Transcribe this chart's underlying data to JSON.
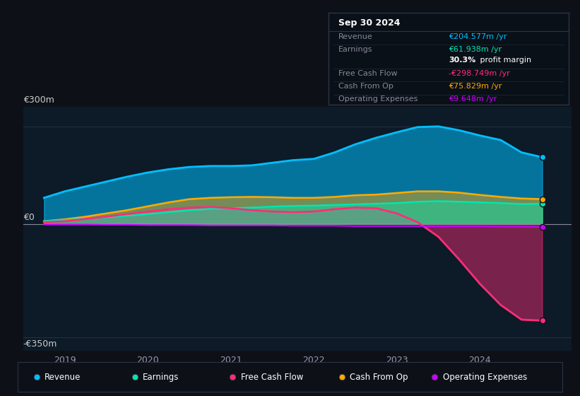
{
  "bg_color": "#0d1117",
  "plot_bg_color": "#0d1a27",
  "ylabel_300": "€300m",
  "ylabel_0": "€0",
  "ylabel_neg350": "-€350m",
  "x_ticks": [
    2019,
    2020,
    2021,
    2022,
    2023,
    2024
  ],
  "x_min": 2018.5,
  "x_max": 2025.1,
  "y_min": -390,
  "y_max": 360,
  "revenue_color": "#00bfff",
  "earnings_color": "#00e5b0",
  "fcf_color": "#ff2d78",
  "cashfromop_color": "#ffaa00",
  "opex_color": "#cc00ff",
  "info_box": {
    "title": "Sep 30 2024",
    "rows": [
      {
        "label": "Revenue",
        "value": "€204.577m /yr",
        "value_color": "#00bfff"
      },
      {
        "label": "Earnings",
        "value": "€61.938m /yr",
        "value_color": "#00e5b0"
      },
      {
        "label": "",
        "value": "30.3% profit margin",
        "value_color": "#ffffff"
      },
      {
        "label": "Free Cash Flow",
        "value": "-€298.749m /yr",
        "value_color": "#ff2d78"
      },
      {
        "label": "Cash From Op",
        "value": "€75.829m /yr",
        "value_color": "#ffaa00"
      },
      {
        "label": "Operating Expenses",
        "value": "€9.648m /yr",
        "value_color": "#cc00ff"
      }
    ]
  },
  "legend": [
    {
      "label": "Revenue",
      "color": "#00bfff"
    },
    {
      "label": "Earnings",
      "color": "#00e5b0"
    },
    {
      "label": "Free Cash Flow",
      "color": "#ff2d78"
    },
    {
      "label": "Cash From Op",
      "color": "#ffaa00"
    },
    {
      "label": "Operating Expenses",
      "color": "#cc00ff"
    }
  ],
  "x": [
    2018.75,
    2019.0,
    2019.25,
    2019.5,
    2019.75,
    2020.0,
    2020.25,
    2020.5,
    2020.75,
    2021.0,
    2021.25,
    2021.5,
    2021.75,
    2022.0,
    2022.25,
    2022.5,
    2022.75,
    2023.0,
    2023.25,
    2023.5,
    2023.75,
    2024.0,
    2024.25,
    2024.5,
    2024.75
  ],
  "revenue": [
    80,
    100,
    115,
    130,
    145,
    158,
    168,
    175,
    178,
    178,
    180,
    188,
    196,
    200,
    220,
    245,
    265,
    282,
    298,
    300,
    288,
    272,
    258,
    220,
    205
  ],
  "earnings": [
    8,
    12,
    16,
    20,
    25,
    30,
    36,
    42,
    46,
    48,
    50,
    53,
    55,
    56,
    58,
    60,
    62,
    64,
    68,
    70,
    68,
    66,
    64,
    61,
    62
  ],
  "fcf": [
    5,
    8,
    15,
    22,
    30,
    38,
    45,
    50,
    52,
    48,
    42,
    38,
    36,
    38,
    45,
    50,
    48,
    32,
    5,
    -40,
    -110,
    -185,
    -250,
    -295,
    -298
  ],
  "cashfromop": [
    8,
    14,
    22,
    32,
    42,
    54,
    66,
    76,
    80,
    82,
    83,
    82,
    80,
    80,
    83,
    88,
    90,
    95,
    100,
    100,
    96,
    89,
    83,
    78,
    76
  ],
  "opex": [
    -2,
    -2,
    -2,
    -3,
    -3,
    -4,
    -4,
    -4,
    -5,
    -5,
    -5,
    -5,
    -6,
    -6,
    -6,
    -7,
    -7,
    -7,
    -7,
    -8,
    -8,
    -8,
    -9,
    -9,
    -10
  ]
}
